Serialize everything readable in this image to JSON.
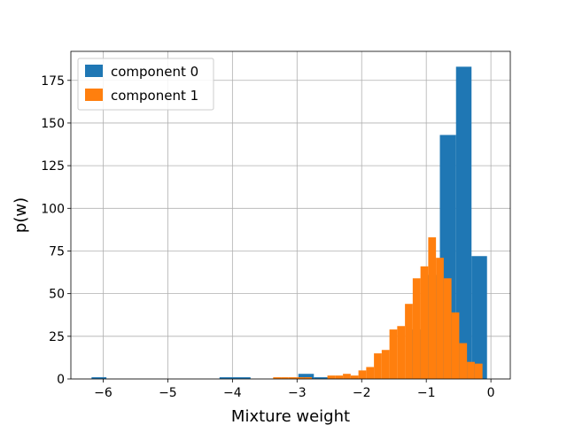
{
  "chart_data": {
    "type": "histogram",
    "xlabel": "Mixture weight",
    "ylabel": "p(w)",
    "xlim": [
      -6.5,
      0.3
    ],
    "ylim": [
      0,
      192
    ],
    "grid": true,
    "legend_position": "top-left",
    "x_ticks": [
      {
        "value": -6,
        "label": "−6"
      },
      {
        "value": -5,
        "label": "−5"
      },
      {
        "value": -4,
        "label": "−4"
      },
      {
        "value": -3,
        "label": "−3"
      },
      {
        "value": -2,
        "label": "−2"
      },
      {
        "value": -1,
        "label": "−1"
      },
      {
        "value": 0,
        "label": "0"
      }
    ],
    "y_ticks": [
      {
        "value": 0,
        "label": "0"
      },
      {
        "value": 25,
        "label": "25"
      },
      {
        "value": 50,
        "label": "50"
      },
      {
        "value": 75,
        "label": "75"
      },
      {
        "value": 100,
        "label": "100"
      },
      {
        "value": 125,
        "label": "125"
      },
      {
        "value": 150,
        "label": "150"
      },
      {
        "value": 175,
        "label": "175"
      }
    ],
    "series": [
      {
        "name": "component 0",
        "color": "#1f77b4",
        "bins": [
          {
            "x0": -6.18,
            "x1": -5.95,
            "count": 1
          },
          {
            "x0": -4.2,
            "x1": -3.95,
            "count": 1
          },
          {
            "x0": -3.95,
            "x1": -3.72,
            "count": 1
          },
          {
            "x0": -2.98,
            "x1": -2.74,
            "count": 3
          },
          {
            "x0": -2.74,
            "x1": -2.5,
            "count": 1
          },
          {
            "x0": -1.27,
            "x1": -1.03,
            "count": 29
          },
          {
            "x0": -1.03,
            "x1": -0.79,
            "count": 61
          },
          {
            "x0": -0.79,
            "x1": -0.54,
            "count": 143
          },
          {
            "x0": -0.54,
            "x1": -0.3,
            "count": 183
          },
          {
            "x0": -0.3,
            "x1": -0.06,
            "count": 72
          }
        ]
      },
      {
        "name": "component 1",
        "color": "#ff7f0e",
        "bins": [
          {
            "x0": -3.37,
            "x1": -3.25,
            "count": 1
          },
          {
            "x0": -3.25,
            "x1": -3.13,
            "count": 1
          },
          {
            "x0": -3.13,
            "x1": -3.01,
            "count": 1
          },
          {
            "x0": -3.01,
            "x1": -2.89,
            "count": 1
          },
          {
            "x0": -2.89,
            "x1": -2.77,
            "count": 1
          },
          {
            "x0": -2.53,
            "x1": -2.41,
            "count": 2
          },
          {
            "x0": -2.41,
            "x1": -2.29,
            "count": 2
          },
          {
            "x0": -2.29,
            "x1": -2.17,
            "count": 3
          },
          {
            "x0": -2.17,
            "x1": -2.05,
            "count": 2
          },
          {
            "x0": -2.05,
            "x1": -1.93,
            "count": 5
          },
          {
            "x0": -1.93,
            "x1": -1.81,
            "count": 7
          },
          {
            "x0": -1.81,
            "x1": -1.69,
            "count": 15
          },
          {
            "x0": -1.69,
            "x1": -1.57,
            "count": 17
          },
          {
            "x0": -1.57,
            "x1": -1.45,
            "count": 29
          },
          {
            "x0": -1.45,
            "x1": -1.33,
            "count": 31
          },
          {
            "x0": -1.33,
            "x1": -1.21,
            "count": 44
          },
          {
            "x0": -1.21,
            "x1": -1.09,
            "count": 59
          },
          {
            "x0": -1.09,
            "x1": -0.97,
            "count": 66
          },
          {
            "x0": -0.97,
            "x1": -0.85,
            "count": 83
          },
          {
            "x0": -0.85,
            "x1": -0.73,
            "count": 71
          },
          {
            "x0": -0.73,
            "x1": -0.61,
            "count": 59
          },
          {
            "x0": -0.61,
            "x1": -0.49,
            "count": 39
          },
          {
            "x0": -0.49,
            "x1": -0.37,
            "count": 21
          },
          {
            "x0": -0.37,
            "x1": -0.25,
            "count": 10
          },
          {
            "x0": -0.25,
            "x1": -0.13,
            "count": 9
          }
        ]
      }
    ]
  }
}
